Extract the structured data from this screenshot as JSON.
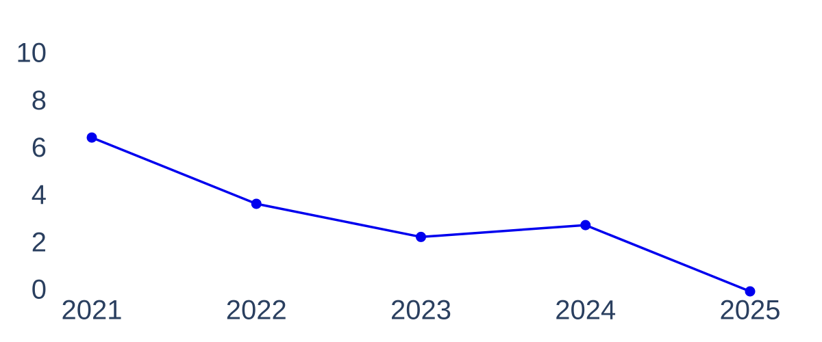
{
  "chart_data": {
    "type": "line",
    "categories": [
      "2021",
      "2022",
      "2023",
      "2024",
      "2025"
    ],
    "series": [
      {
        "color": "#0000ee",
        "values": [
          6.5,
          3.7,
          2.3,
          2.8,
          0
        ]
      }
    ],
    "ylim": [
      0,
      10
    ],
    "yticks": [
      0,
      2,
      4,
      6,
      8,
      10
    ],
    "grid": false
  }
}
